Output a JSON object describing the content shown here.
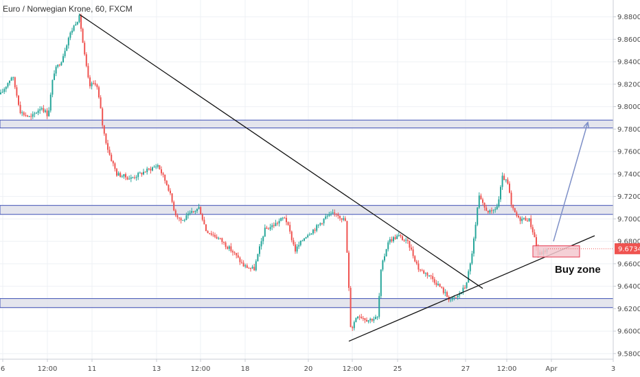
{
  "title": "Euro / Norwegian Krone, 60, FXCM",
  "annotation": "Buy zone",
  "price_badge": "9.67340",
  "colors": {
    "up": "#26a69a",
    "down": "#ef5350",
    "zone_fill": "#dfe1ea",
    "zone_border": "#3f51b5",
    "buy_zone_fill": "#f3c8cf",
    "buy_zone_border": "#e53950",
    "trendline": "#111111",
    "projection": "#7d8fc7",
    "badge": "#ef5350"
  },
  "chart_data": {
    "type": "candlestick",
    "title": "Euro / Norwegian Krone, 60, FXCM",
    "ylim": [
      9.575,
      9.895
    ],
    "y_ticks": [
      "9.58000",
      "9.60000",
      "9.62000",
      "9.64000",
      "9.66000",
      "9.68000",
      "9.70000",
      "9.72000",
      "9.74000",
      "9.76000",
      "9.78000",
      "9.80000",
      "9.82000",
      "9.84000",
      "9.86000",
      "9.88000"
    ],
    "x_ticks": [
      "6",
      "12:00",
      "11",
      "13",
      "12:00",
      "18",
      "20",
      "12:00",
      "25",
      "27",
      "12:00",
      "Apr",
      "3"
    ],
    "path": [
      [
        0,
        9.81
      ],
      [
        18,
        9.828
      ],
      [
        30,
        9.795
      ],
      [
        45,
        9.79
      ],
      [
        60,
        9.8
      ],
      [
        70,
        9.792
      ],
      [
        78,
        9.83
      ],
      [
        90,
        9.842
      ],
      [
        100,
        9.862
      ],
      [
        110,
        9.875
      ],
      [
        116,
        9.88
      ],
      [
        122,
        9.85
      ],
      [
        130,
        9.818
      ],
      [
        140,
        9.822
      ],
      [
        146,
        9.8
      ],
      [
        150,
        9.78
      ],
      [
        158,
        9.76
      ],
      [
        170,
        9.74
      ],
      [
        190,
        9.736
      ],
      [
        210,
        9.742
      ],
      [
        230,
        9.748
      ],
      [
        245,
        9.728
      ],
      [
        255,
        9.705
      ],
      [
        265,
        9.698
      ],
      [
        278,
        9.705
      ],
      [
        290,
        9.71
      ],
      [
        300,
        9.69
      ],
      [
        320,
        9.682
      ],
      [
        340,
        9.67
      ],
      [
        355,
        9.658
      ],
      [
        370,
        9.655
      ],
      [
        385,
        9.69
      ],
      [
        400,
        9.695
      ],
      [
        415,
        9.702
      ],
      [
        430,
        9.672
      ],
      [
        445,
        9.685
      ],
      [
        460,
        9.692
      ],
      [
        475,
        9.702
      ],
      [
        490,
        9.705
      ],
      [
        503,
        9.698
      ],
      [
        507,
        9.65
      ],
      [
        511,
        9.6
      ],
      [
        520,
        9.615
      ],
      [
        535,
        9.61
      ],
      [
        550,
        9.612
      ],
      [
        555,
        9.655
      ],
      [
        565,
        9.68
      ],
      [
        580,
        9.685
      ],
      [
        595,
        9.678
      ],
      [
        610,
        9.655
      ],
      [
        625,
        9.65
      ],
      [
        640,
        9.64
      ],
      [
        655,
        9.628
      ],
      [
        665,
        9.63
      ],
      [
        678,
        9.64
      ],
      [
        685,
        9.66
      ],
      [
        692,
        9.69
      ],
      [
        697,
        9.72
      ],
      [
        705,
        9.71
      ],
      [
        715,
        9.705
      ],
      [
        725,
        9.712
      ],
      [
        732,
        9.738
      ],
      [
        740,
        9.73
      ],
      [
        745,
        9.71
      ],
      [
        755,
        9.7
      ],
      [
        770,
        9.7
      ],
      [
        778,
        9.685
      ],
      [
        783,
        9.668
      ],
      [
        790,
        9.67
      ],
      [
        797,
        9.673
      ]
    ],
    "horizontal_zones": [
      {
        "from": 9.781,
        "to": 9.788
      },
      {
        "from": 9.704,
        "to": 9.712
      },
      {
        "from": 9.621,
        "to": 9.629
      }
    ],
    "trendlines": [
      {
        "from": [
          116,
          9.882
        ],
        "to": [
          703,
          9.638
        ]
      },
      {
        "from": [
          508,
          9.591
        ],
        "to": [
          866,
          9.685
        ]
      }
    ],
    "buy_zone": {
      "x_from": 776,
      "x_to": 844,
      "from": 9.666,
      "to": 9.676,
      "label": "Buy zone"
    },
    "projection": {
      "from": [
        806,
        9.68
      ],
      "to": [
        856,
        9.786
      ]
    },
    "last_price": 9.6734,
    "grid": true
  }
}
